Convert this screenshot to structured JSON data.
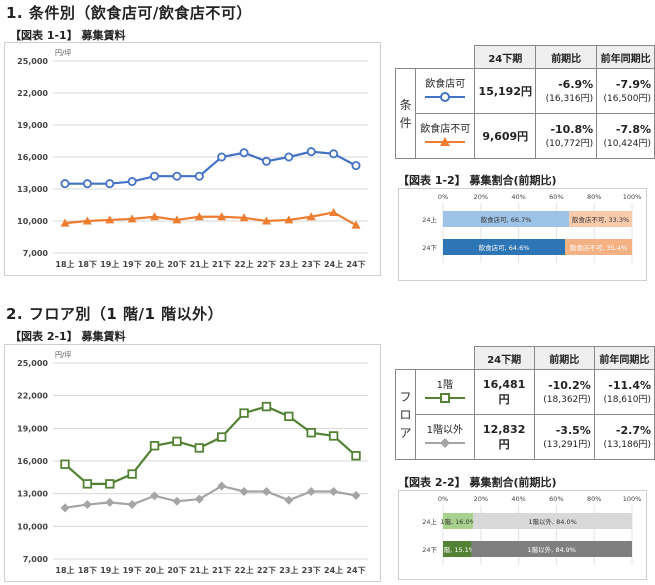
{
  "section1": {
    "title": "1. 条件別（飲食店可/飲食店不可）",
    "chart_caption": "【図表 1-1】 募集賃料",
    "share_caption": "【図表 1-2】 募集割合(前期比)"
  },
  "section2": {
    "title": "2. フロア別（1 階/1 階以外）",
    "chart_caption": "【図表 2-1】 募集賃料",
    "share_caption": "【図表 2-2】 募集割合(前期比)"
  },
  "table1": {
    "headers": [
      "24下期",
      "前期比",
      "前年同期比"
    ],
    "side_label": [
      "条",
      "件"
    ],
    "rows": [
      {
        "name": "飲食店可",
        "value": "15,192円",
        "qoq": "-6.9%",
        "qoq_sub": "(16,316円)",
        "yoy": "-7.9%",
        "yoy_sub": "(16,500円)",
        "color": "#4472c4"
      },
      {
        "name": "飲食店不可",
        "value": "9,609円",
        "qoq": "-10.8%",
        "qoq_sub": "(10,772円)",
        "yoy": "-7.8%",
        "yoy_sub": "(10,424円)",
        "color": "#ed7d31"
      }
    ]
  },
  "table2": {
    "headers": [
      "24下期",
      "前期比",
      "前年同期比"
    ],
    "side_label": [
      "フ",
      "ロ",
      "ア"
    ],
    "rows": [
      {
        "name": "1階",
        "value": "16,481円",
        "qoq": "-10.2%",
        "qoq_sub": "(18,362円)",
        "yoy": "-11.4%",
        "yoy_sub": "(18,610円)",
        "color": "#548235"
      },
      {
        "name": "1階以外",
        "value": "12,832円",
        "qoq": "-3.5%",
        "qoq_sub": "(13,291円)",
        "yoy": "-2.7%",
        "yoy_sub": "(13,186円)",
        "color": "#a5a5a5"
      }
    ]
  },
  "chart_data": [
    {
      "type": "line",
      "title": "【図表 1-1】 募集賃料",
      "unit": "円/坪",
      "categories": [
        "18上",
        "18下",
        "19上",
        "19下",
        "20上",
        "20下",
        "21上",
        "21下",
        "22上",
        "22下",
        "23上",
        "23下",
        "24上",
        "24下"
      ],
      "ylim": [
        7000,
        25000
      ],
      "yticks": [
        "7,000",
        "10,000",
        "13,000",
        "16,000",
        "19,000",
        "22,000",
        "25,000"
      ],
      "grid": true,
      "series": [
        {
          "name": "飲食店可",
          "color": "#4472c4",
          "marker": "circle",
          "values": [
            13500,
            13500,
            13500,
            13700,
            14200,
            14200,
            14200,
            16000,
            16400,
            15600,
            16000,
            16500,
            16300,
            15192
          ]
        },
        {
          "name": "飲食店不可",
          "color": "#ed7d31",
          "marker": "triangle",
          "values": [
            9800,
            10000,
            10100,
            10200,
            10400,
            10100,
            10400,
            10400,
            10300,
            10000,
            10100,
            10400,
            10800,
            9609
          ]
        }
      ]
    },
    {
      "type": "line",
      "title": "【図表 2-1】 募集賃料",
      "unit": "円/坪",
      "categories": [
        "18上",
        "18下",
        "19上",
        "19下",
        "20上",
        "20下",
        "21上",
        "21下",
        "22上",
        "22下",
        "23上",
        "23下",
        "24上",
        "24下"
      ],
      "ylim": [
        7000,
        25000
      ],
      "yticks": [
        "7,000",
        "10,000",
        "13,000",
        "16,000",
        "19,000",
        "22,000",
        "25,000"
      ],
      "grid": true,
      "series": [
        {
          "name": "1階",
          "color": "#548235",
          "marker": "square",
          "values": [
            15700,
            13900,
            13900,
            14800,
            17400,
            17800,
            17200,
            18200,
            20400,
            21000,
            20100,
            18600,
            18300,
            16481
          ]
        },
        {
          "name": "1階以外",
          "color": "#a5a5a5",
          "marker": "diamond",
          "values": [
            11700,
            12000,
            12200,
            12000,
            12800,
            12300,
            12500,
            13700,
            13200,
            13200,
            12400,
            13200,
            13200,
            12832
          ]
        }
      ]
    },
    {
      "type": "bar",
      "title": "【図表 1-2】 募集割合(前期比)",
      "orientation": "horizontal-stacked",
      "xticks": [
        "0%",
        "20%",
        "40%",
        "60%",
        "80%",
        "100%"
      ],
      "categories": [
        "24上",
        "24下"
      ],
      "series": [
        {
          "name": "飲食店可",
          "values": [
            66.7,
            64.6
          ],
          "labels": [
            "飲食店可, 66.7%",
            "飲食店可, 64.6%"
          ],
          "colors": [
            "#9dc3e6",
            "#2e75b6"
          ]
        },
        {
          "name": "飲食店不可",
          "values": [
            33.3,
            35.4
          ],
          "labels": [
            "飲食店不可, 33.3%",
            "飲食店不可, 35.4%"
          ],
          "colors": [
            "#f8cbad",
            "#f4b183"
          ]
        }
      ]
    },
    {
      "type": "bar",
      "title": "【図表 2-2】 募集割合(前期比)",
      "orientation": "horizontal-stacked",
      "xticks": [
        "0%",
        "20%",
        "40%",
        "60%",
        "80%",
        "100%"
      ],
      "categories": [
        "24上",
        "24下"
      ],
      "series": [
        {
          "name": "1階",
          "values": [
            16.0,
            15.1
          ],
          "labels": [
            "1階, 16.0%",
            "1階, 15.1%"
          ],
          "colors": [
            "#a9d18e",
            "#548235"
          ]
        },
        {
          "name": "1階以外",
          "values": [
            84.0,
            84.9
          ],
          "labels": [
            "1階以外, 84.0%",
            "1階以外, 84.9%"
          ],
          "colors": [
            "#d9d9d9",
            "#7f7f7f"
          ]
        }
      ]
    }
  ]
}
